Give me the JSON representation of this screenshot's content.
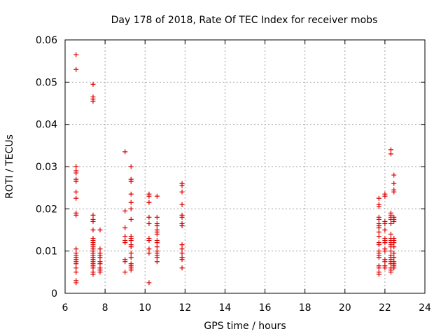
{
  "chart_data": {
    "type": "scatter",
    "title": "Day 178 of 2018, Rate Of TEC Index for receiver mobs",
    "xlabel": "GPS time / hours",
    "ylabel": "ROTI / TECUs",
    "xlim": [
      6,
      24
    ],
    "ylim": [
      0,
      0.06
    ],
    "xticks": [
      6,
      8,
      10,
      12,
      14,
      16,
      18,
      20,
      22,
      24
    ],
    "xtick_labels": [
      "6",
      "8",
      "10",
      "12",
      "14",
      "16",
      "18",
      "20",
      "22",
      "24"
    ],
    "yticks": [
      0,
      0.01,
      0.02,
      0.03,
      0.04,
      0.05,
      0.06
    ],
    "ytick_labels": [
      "0",
      "0.01",
      "0.02",
      "0.03",
      "0.04",
      "0.05",
      "0.06"
    ],
    "grid": true,
    "marker": "+",
    "color": "#dd0000",
    "series": [
      {
        "name": "mobs",
        "points": [
          [
            6.55,
            0.0565
          ],
          [
            6.55,
            0.053
          ],
          [
            6.55,
            0.03
          ],
          [
            6.55,
            0.029
          ],
          [
            6.55,
            0.0285
          ],
          [
            6.55,
            0.027
          ],
          [
            6.55,
            0.0265
          ],
          [
            6.55,
            0.024
          ],
          [
            6.55,
            0.0225
          ],
          [
            6.55,
            0.019
          ],
          [
            6.55,
            0.0185
          ],
          [
            6.55,
            0.0105
          ],
          [
            6.55,
            0.0095
          ],
          [
            6.55,
            0.009
          ],
          [
            6.55,
            0.0085
          ],
          [
            6.55,
            0.008
          ],
          [
            6.55,
            0.0075
          ],
          [
            6.55,
            0.007
          ],
          [
            6.55,
            0.006
          ],
          [
            6.55,
            0.005
          ],
          [
            6.55,
            0.003
          ],
          [
            6.55,
            0.0025
          ],
          [
            7.4,
            0.0495
          ],
          [
            7.4,
            0.0465
          ],
          [
            7.4,
            0.046
          ],
          [
            7.4,
            0.0455
          ],
          [
            7.4,
            0.0185
          ],
          [
            7.4,
            0.0175
          ],
          [
            7.4,
            0.017
          ],
          [
            7.4,
            0.015
          ],
          [
            7.4,
            0.013
          ],
          [
            7.4,
            0.0125
          ],
          [
            7.4,
            0.012
          ],
          [
            7.4,
            0.0115
          ],
          [
            7.4,
            0.011
          ],
          [
            7.4,
            0.0105
          ],
          [
            7.4,
            0.01
          ],
          [
            7.4,
            0.0095
          ],
          [
            7.4,
            0.009
          ],
          [
            7.4,
            0.0085
          ],
          [
            7.4,
            0.008
          ],
          [
            7.4,
            0.0075
          ],
          [
            7.4,
            0.007
          ],
          [
            7.4,
            0.0065
          ],
          [
            7.4,
            0.006
          ],
          [
            7.4,
            0.005
          ],
          [
            7.4,
            0.0045
          ],
          [
            7.75,
            0.015
          ],
          [
            7.75,
            0.0105
          ],
          [
            7.75,
            0.0095
          ],
          [
            7.75,
            0.009
          ],
          [
            7.75,
            0.0085
          ],
          [
            7.75,
            0.0075
          ],
          [
            7.75,
            0.007
          ],
          [
            7.75,
            0.006
          ],
          [
            7.75,
            0.0055
          ],
          [
            7.75,
            0.005
          ],
          [
            9.0,
            0.0335
          ],
          [
            9.0,
            0.0195
          ],
          [
            9.0,
            0.0155
          ],
          [
            9.0,
            0.0135
          ],
          [
            9.0,
            0.0125
          ],
          [
            9.0,
            0.012
          ],
          [
            9.0,
            0.008
          ],
          [
            9.0,
            0.0075
          ],
          [
            9.0,
            0.005
          ],
          [
            9.3,
            0.03
          ],
          [
            9.3,
            0.027
          ],
          [
            9.3,
            0.0265
          ],
          [
            9.3,
            0.0235
          ],
          [
            9.3,
            0.0215
          ],
          [
            9.3,
            0.02
          ],
          [
            9.3,
            0.0175
          ],
          [
            9.3,
            0.0135
          ],
          [
            9.3,
            0.013
          ],
          [
            9.3,
            0.0125
          ],
          [
            9.3,
            0.0115
          ],
          [
            9.3,
            0.011
          ],
          [
            9.3,
            0.0095
          ],
          [
            9.3,
            0.0085
          ],
          [
            9.3,
            0.007
          ],
          [
            9.3,
            0.0065
          ],
          [
            9.3,
            0.006
          ],
          [
            9.3,
            0.0055
          ],
          [
            10.2,
            0.0235
          ],
          [
            10.2,
            0.023
          ],
          [
            10.2,
            0.0215
          ],
          [
            10.2,
            0.018
          ],
          [
            10.2,
            0.0165
          ],
          [
            10.2,
            0.013
          ],
          [
            10.2,
            0.0125
          ],
          [
            10.2,
            0.0105
          ],
          [
            10.2,
            0.0095
          ],
          [
            10.2,
            0.0025
          ],
          [
            10.6,
            0.023
          ],
          [
            10.6,
            0.018
          ],
          [
            10.6,
            0.0165
          ],
          [
            10.6,
            0.016
          ],
          [
            10.6,
            0.015
          ],
          [
            10.6,
            0.0145
          ],
          [
            10.6,
            0.014
          ],
          [
            10.6,
            0.0125
          ],
          [
            10.6,
            0.012
          ],
          [
            10.6,
            0.011
          ],
          [
            10.6,
            0.01
          ],
          [
            10.6,
            0.0095
          ],
          [
            10.6,
            0.009
          ],
          [
            10.6,
            0.0085
          ],
          [
            10.6,
            0.0075
          ],
          [
            11.85,
            0.026
          ],
          [
            11.85,
            0.0255
          ],
          [
            11.85,
            0.024
          ],
          [
            11.85,
            0.021
          ],
          [
            11.85,
            0.0185
          ],
          [
            11.85,
            0.018
          ],
          [
            11.85,
            0.0165
          ],
          [
            11.85,
            0.016
          ],
          [
            11.85,
            0.0115
          ],
          [
            11.85,
            0.0105
          ],
          [
            11.85,
            0.0095
          ],
          [
            11.85,
            0.0085
          ],
          [
            11.85,
            0.008
          ],
          [
            11.85,
            0.006
          ],
          [
            21.7,
            0.0225
          ],
          [
            21.7,
            0.021
          ],
          [
            21.7,
            0.0205
          ],
          [
            21.7,
            0.018
          ],
          [
            21.7,
            0.0175
          ],
          [
            21.7,
            0.0165
          ],
          [
            21.7,
            0.016
          ],
          [
            21.7,
            0.0155
          ],
          [
            21.7,
            0.0145
          ],
          [
            21.7,
            0.0135
          ],
          [
            21.7,
            0.012
          ],
          [
            21.7,
            0.0115
          ],
          [
            21.7,
            0.01
          ],
          [
            21.7,
            0.0095
          ],
          [
            21.7,
            0.009
          ],
          [
            21.7,
            0.0085
          ],
          [
            21.7,
            0.0065
          ],
          [
            21.7,
            0.006
          ],
          [
            21.7,
            0.005
          ],
          [
            21.7,
            0.0045
          ],
          [
            22.0,
            0.0235
          ],
          [
            22.0,
            0.023
          ],
          [
            22.0,
            0.017
          ],
          [
            22.0,
            0.0165
          ],
          [
            22.0,
            0.015
          ],
          [
            22.0,
            0.013
          ],
          [
            22.0,
            0.0125
          ],
          [
            22.0,
            0.012
          ],
          [
            22.0,
            0.0105
          ],
          [
            22.0,
            0.01
          ],
          [
            22.0,
            0.008
          ],
          [
            22.0,
            0.0075
          ],
          [
            22.0,
            0.0065
          ],
          [
            22.0,
            0.006
          ],
          [
            22.3,
            0.034
          ],
          [
            22.3,
            0.033
          ],
          [
            22.3,
            0.019
          ],
          [
            22.3,
            0.0185
          ],
          [
            22.3,
            0.018
          ],
          [
            22.3,
            0.0175
          ],
          [
            22.3,
            0.0165
          ],
          [
            22.3,
            0.014
          ],
          [
            22.3,
            0.013
          ],
          [
            22.3,
            0.0125
          ],
          [
            22.3,
            0.012
          ],
          [
            22.3,
            0.0115
          ],
          [
            22.3,
            0.011
          ],
          [
            22.3,
            0.01
          ],
          [
            22.3,
            0.009
          ],
          [
            22.3,
            0.0085
          ],
          [
            22.3,
            0.008
          ],
          [
            22.3,
            0.0075
          ],
          [
            22.3,
            0.007
          ],
          [
            22.3,
            0.006
          ],
          [
            22.3,
            0.0055
          ],
          [
            22.3,
            0.005
          ],
          [
            22.45,
            0.028
          ],
          [
            22.45,
            0.026
          ],
          [
            22.45,
            0.0245
          ],
          [
            22.45,
            0.024
          ],
          [
            22.45,
            0.018
          ],
          [
            22.45,
            0.0175
          ],
          [
            22.45,
            0.017
          ],
          [
            22.45,
            0.013
          ],
          [
            22.45,
            0.0125
          ],
          [
            22.45,
            0.012
          ],
          [
            22.45,
            0.011
          ],
          [
            22.45,
            0.0095
          ],
          [
            22.45,
            0.0085
          ],
          [
            22.45,
            0.0075
          ],
          [
            22.45,
            0.007
          ],
          [
            22.45,
            0.0065
          ],
          [
            22.45,
            0.006
          ]
        ]
      }
    ]
  }
}
